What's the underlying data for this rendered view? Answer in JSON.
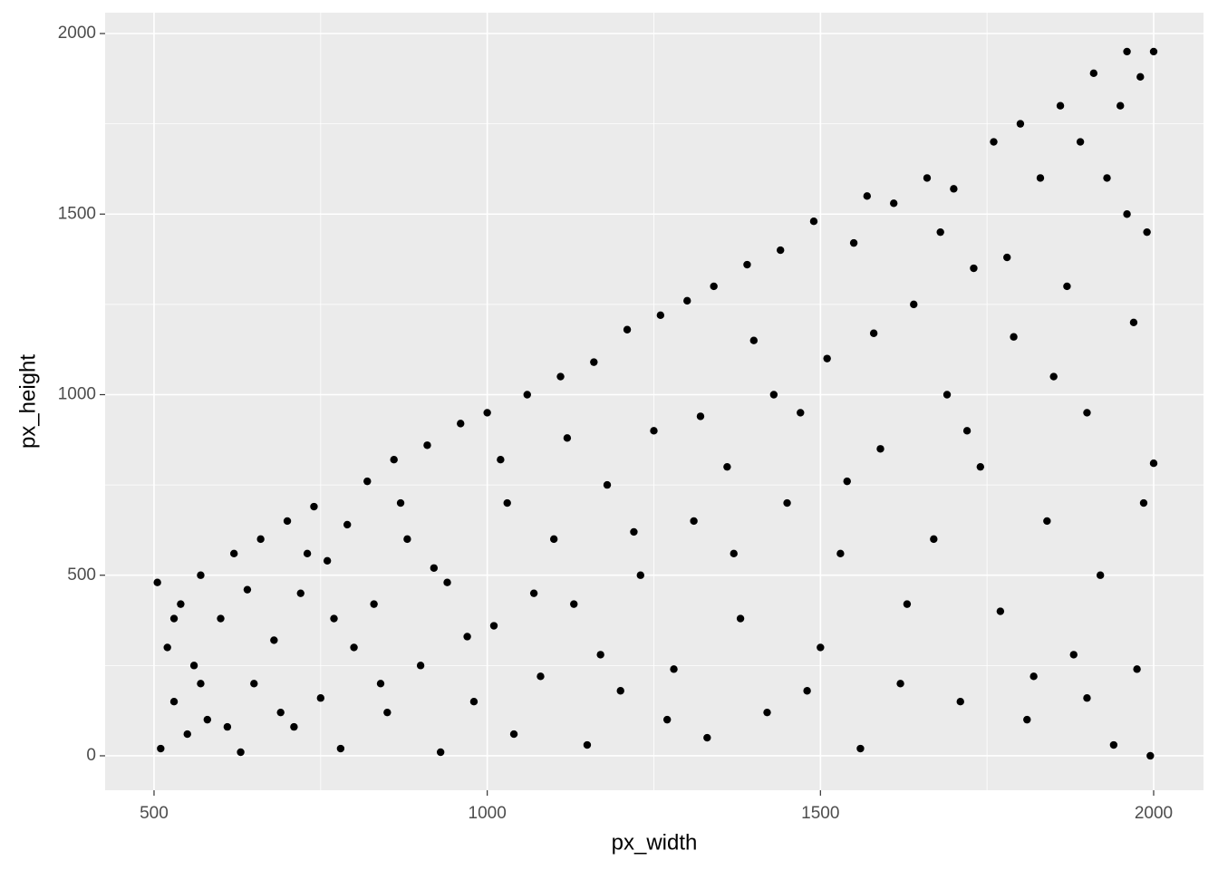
{
  "chart_data": {
    "type": "scatter",
    "xlabel": "px_width",
    "ylabel": "px_height",
    "color": "#000000",
    "x": [
      505,
      510,
      520,
      530,
      540,
      550,
      560,
      570,
      580,
      600,
      620,
      630,
      650,
      660,
      680,
      700,
      710,
      720,
      740,
      750,
      760,
      780,
      800,
      820,
      830,
      850,
      860,
      880,
      900,
      910,
      930,
      940,
      960,
      980,
      1000,
      1010,
      1030,
      1040,
      1060,
      1080,
      1100,
      1110,
      1130,
      1150,
      1160,
      1180,
      1200,
      1210,
      1230,
      1250,
      1260,
      1280,
      1300,
      1310,
      1330,
      1340,
      1360,
      1380,
      1390,
      1400,
      1420,
      1440,
      1450,
      1470,
      1490,
      1500,
      1510,
      1530,
      1550,
      1560,
      1570,
      1590,
      1610,
      1620,
      1640,
      1660,
      1670,
      1690,
      1700,
      1710,
      1730,
      1740,
      1760,
      1770,
      1790,
      1800,
      1810,
      1830,
      1840,
      1860,
      1870,
      1880,
      1890,
      1900,
      1910,
      1920,
      1930,
      1940,
      1950,
      1960,
      1970,
      1975,
      1980,
      1985,
      1990,
      1995,
      2000,
      2000,
      530,
      570,
      610,
      640,
      690,
      730,
      770,
      790,
      840,
      870,
      920,
      970,
      1020,
      1070,
      1120,
      1170,
      1220,
      1270,
      1320,
      1370,
      1430,
      1480,
      1540,
      1580,
      1630,
      1680,
      1720,
      1780,
      1820,
      1850,
      1900,
      1960
    ],
    "y": [
      480,
      20,
      300,
      150,
      420,
      60,
      250,
      500,
      100,
      380,
      560,
      10,
      200,
      600,
      320,
      650,
      80,
      450,
      690,
      160,
      540,
      20,
      300,
      760,
      420,
      120,
      820,
      600,
      250,
      860,
      10,
      480,
      920,
      150,
      950,
      360,
      700,
      60,
      1000,
      220,
      600,
      1050,
      420,
      30,
      1090,
      750,
      180,
      1180,
      500,
      900,
      1220,
      240,
      1260,
      650,
      50,
      1300,
      800,
      380,
      1360,
      1150,
      120,
      1400,
      700,
      950,
      1480,
      300,
      1100,
      560,
      1420,
      20,
      1550,
      850,
      1530,
      200,
      1250,
      1600,
      600,
      1000,
      1570,
      150,
      1350,
      800,
      1700,
      400,
      1160,
      1750,
      100,
      1600,
      650,
      1800,
      1300,
      280,
      1700,
      950,
      1890,
      500,
      1600,
      30,
      1800,
      1950,
      1200,
      240,
      1880,
      700,
      1450,
      0,
      1950,
      810,
      380,
      200,
      80,
      460,
      120,
      560,
      380,
      640,
      200,
      700,
      520,
      330,
      820,
      450,
      880,
      280,
      620,
      100,
      940,
      560,
      1000,
      180,
      760,
      1170,
      420,
      1450,
      900,
      1380,
      220,
      1050,
      160,
      1500
    ],
    "xlim": [
      426.6,
      2074.8
    ],
    "ylim": [
      -95.4,
      2057.7
    ],
    "xticks": [
      500,
      1000,
      1500,
      2000
    ],
    "yticks": [
      0,
      500,
      1000,
      1500,
      2000
    ],
    "minor_xticks": [
      750,
      1250,
      1750
    ],
    "minor_yticks": [
      250,
      750,
      1250,
      1750
    ],
    "grid": true
  }
}
